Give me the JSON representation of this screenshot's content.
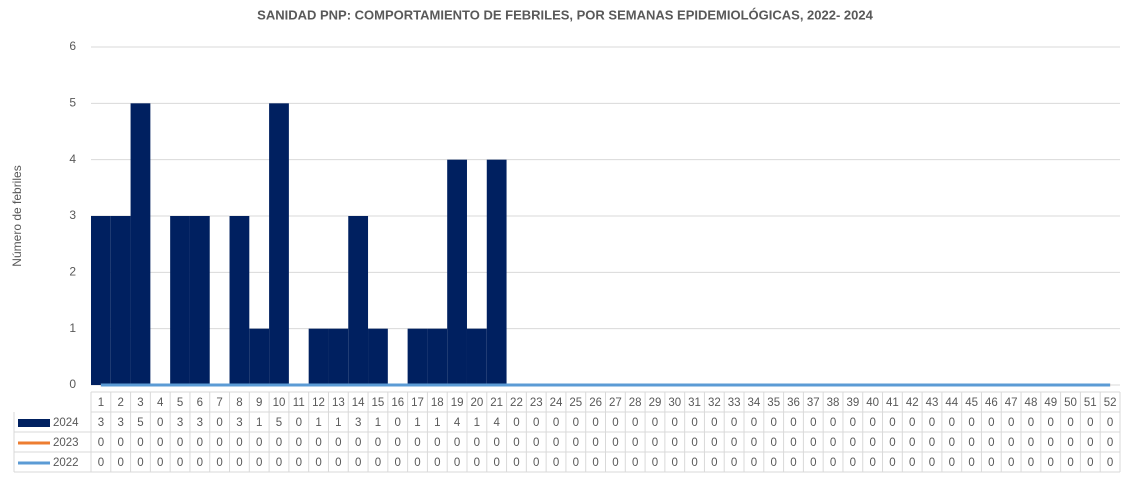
{
  "chart_data": {
    "type": "bar",
    "title": "SANIDAD PNP:  COMPORTAMIENTO DE FEBRILES, POR SEMANAS EPIDEMIOLÓGICAS, 2022- 2024",
    "y_label": "Número de febriles",
    "categories": [
      "1",
      "2",
      "3",
      "4",
      "5",
      "6",
      "7",
      "8",
      "9",
      "10",
      "11",
      "12",
      "13",
      "14",
      "15",
      "16",
      "17",
      "18",
      "19",
      "20",
      "21",
      "22",
      "23",
      "24",
      "25",
      "26",
      "27",
      "28",
      "29",
      "30",
      "31",
      "32",
      "33",
      "34",
      "35",
      "36",
      "37",
      "38",
      "39",
      "40",
      "41",
      "42",
      "43",
      "44",
      "45",
      "46",
      "47",
      "48",
      "49",
      "50",
      "51",
      "52"
    ],
    "series": [
      {
        "name": "2024",
        "type": "bar",
        "color": "#002060",
        "values": [
          3,
          3,
          5,
          0,
          3,
          3,
          0,
          3,
          1,
          5,
          0,
          1,
          1,
          3,
          1,
          0,
          1,
          1,
          4,
          1,
          4,
          0,
          0,
          0,
          0,
          0,
          0,
          0,
          0,
          0,
          0,
          0,
          0,
          0,
          0,
          0,
          0,
          0,
          0,
          0,
          0,
          0,
          0,
          0,
          0,
          0,
          0,
          0,
          0,
          0,
          0,
          0
        ]
      },
      {
        "name": "2023",
        "type": "line",
        "color": "#ed7d31",
        "values": [
          0,
          0,
          0,
          0,
          0,
          0,
          0,
          0,
          0,
          0,
          0,
          0,
          0,
          0,
          0,
          0,
          0,
          0,
          0,
          0,
          0,
          0,
          0,
          0,
          0,
          0,
          0,
          0,
          0,
          0,
          0,
          0,
          0,
          0,
          0,
          0,
          0,
          0,
          0,
          0,
          0,
          0,
          0,
          0,
          0,
          0,
          0,
          0,
          0,
          0,
          0,
          0
        ]
      },
      {
        "name": "2022",
        "type": "line",
        "color": "#5b9bd5",
        "values": [
          0,
          0,
          0,
          0,
          0,
          0,
          0,
          0,
          0,
          0,
          0,
          0,
          0,
          0,
          0,
          0,
          0,
          0,
          0,
          0,
          0,
          0,
          0,
          0,
          0,
          0,
          0,
          0,
          0,
          0,
          0,
          0,
          0,
          0,
          0,
          0,
          0,
          0,
          0,
          0,
          0,
          0,
          0,
          0,
          0,
          0,
          0,
          0,
          0,
          0,
          0,
          0
        ]
      }
    ],
    "ylim": [
      0,
      6
    ],
    "yticks": [
      0,
      1,
      2,
      3,
      4,
      5,
      6
    ],
    "grid": true
  }
}
